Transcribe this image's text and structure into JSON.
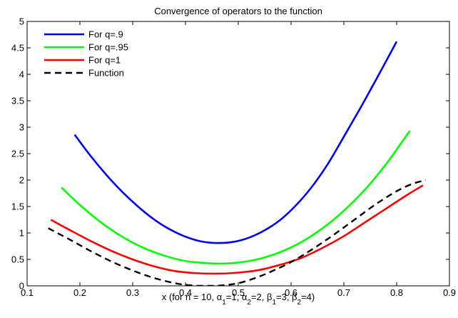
{
  "chart_data": {
    "type": "line",
    "title": "Convergence of operators to the function",
    "xlabel": "x (for n = 10, α₁=1, α₂=2, β₁=3, β₂=4)",
    "xlabel_parts": [
      {
        "t": "x (for n = 10, α",
        "sub": false
      },
      {
        "t": "1",
        "sub": true
      },
      {
        "t": "=1, α",
        "sub": false
      },
      {
        "t": "2",
        "sub": true
      },
      {
        "t": "=2, β",
        "sub": false
      },
      {
        "t": "1",
        "sub": true
      },
      {
        "t": "=3, β",
        "sub": false
      },
      {
        "t": "2",
        "sub": true
      },
      {
        "t": "=4)",
        "sub": false
      }
    ],
    "ylabel": "",
    "xlim": [
      0.1,
      0.9
    ],
    "ylim": [
      0,
      5
    ],
    "xticks": [
      0.1,
      0.2,
      0.3,
      0.4,
      0.5,
      0.6,
      0.7,
      0.8,
      0.9
    ],
    "xtick_labels": [
      "0.1",
      "0.2",
      "0.3",
      "0.4",
      "0.5",
      "0.6",
      "0.7",
      "0.8",
      "0.9"
    ],
    "yticks": [
      0,
      0.5,
      1,
      1.5,
      2,
      2.5,
      3,
      3.5,
      4,
      4.5,
      5
    ],
    "ytick_labels": [
      "0",
      "0.5",
      "1",
      "1.5",
      "2",
      "2.5",
      "3",
      "3.5",
      "4",
      "4.5",
      "5"
    ],
    "grid": false,
    "legend_position": "top-left",
    "series": [
      {
        "name": "For q=.9",
        "color": "#0000ff",
        "dash": "solid",
        "x": [
          0.19,
          0.22,
          0.25,
          0.28,
          0.31,
          0.34,
          0.37,
          0.4,
          0.43,
          0.46,
          0.49,
          0.52,
          0.55,
          0.58,
          0.61,
          0.64,
          0.67,
          0.7,
          0.73,
          0.76,
          0.8
        ],
        "y": [
          2.86,
          2.46,
          2.1,
          1.78,
          1.5,
          1.26,
          1.07,
          0.93,
          0.84,
          0.81,
          0.83,
          0.91,
          1.05,
          1.25,
          1.53,
          1.88,
          2.31,
          2.82,
          3.34,
          3.88,
          4.62
        ]
      },
      {
        "name": "For q=.95",
        "color": "#00ff00",
        "dash": "solid",
        "x": [
          0.165,
          0.2,
          0.24,
          0.28,
          0.32,
          0.36,
          0.4,
          0.44,
          0.465,
          0.5,
          0.54,
          0.58,
          0.62,
          0.66,
          0.7,
          0.74,
          0.78,
          0.825
        ],
        "y": [
          1.86,
          1.53,
          1.2,
          0.93,
          0.72,
          0.57,
          0.47,
          0.43,
          0.42,
          0.44,
          0.51,
          0.64,
          0.83,
          1.09,
          1.42,
          1.82,
          2.3,
          2.93
        ]
      },
      {
        "name": "For q=1",
        "color": "#ff0000",
        "dash": "solid",
        "x": [
          0.145,
          0.18,
          0.22,
          0.26,
          0.3,
          0.34,
          0.38,
          0.42,
          0.46,
          0.5,
          0.54,
          0.58,
          0.62,
          0.66,
          0.7,
          0.74,
          0.78,
          0.82,
          0.85
        ],
        "y": [
          1.25,
          1.06,
          0.85,
          0.66,
          0.5,
          0.37,
          0.28,
          0.24,
          0.23,
          0.25,
          0.3,
          0.4,
          0.53,
          0.72,
          0.94,
          1.2,
          1.46,
          1.72,
          1.9
        ]
      },
      {
        "name": "Function",
        "color": "#000000",
        "dash": "dashed",
        "x": [
          0.14,
          0.18,
          0.22,
          0.26,
          0.3,
          0.34,
          0.38,
          0.41,
          0.44,
          0.47,
          0.5,
          0.53,
          0.56,
          0.6,
          0.64,
          0.68,
          0.72,
          0.76,
          0.8,
          0.83,
          0.855
        ],
        "y": [
          1.09,
          0.88,
          0.66,
          0.46,
          0.29,
          0.15,
          0.05,
          0.01,
          0.0,
          0.01,
          0.05,
          0.14,
          0.26,
          0.45,
          0.69,
          0.96,
          1.25,
          1.54,
          1.79,
          1.93,
          2.0
        ]
      }
    ]
  }
}
